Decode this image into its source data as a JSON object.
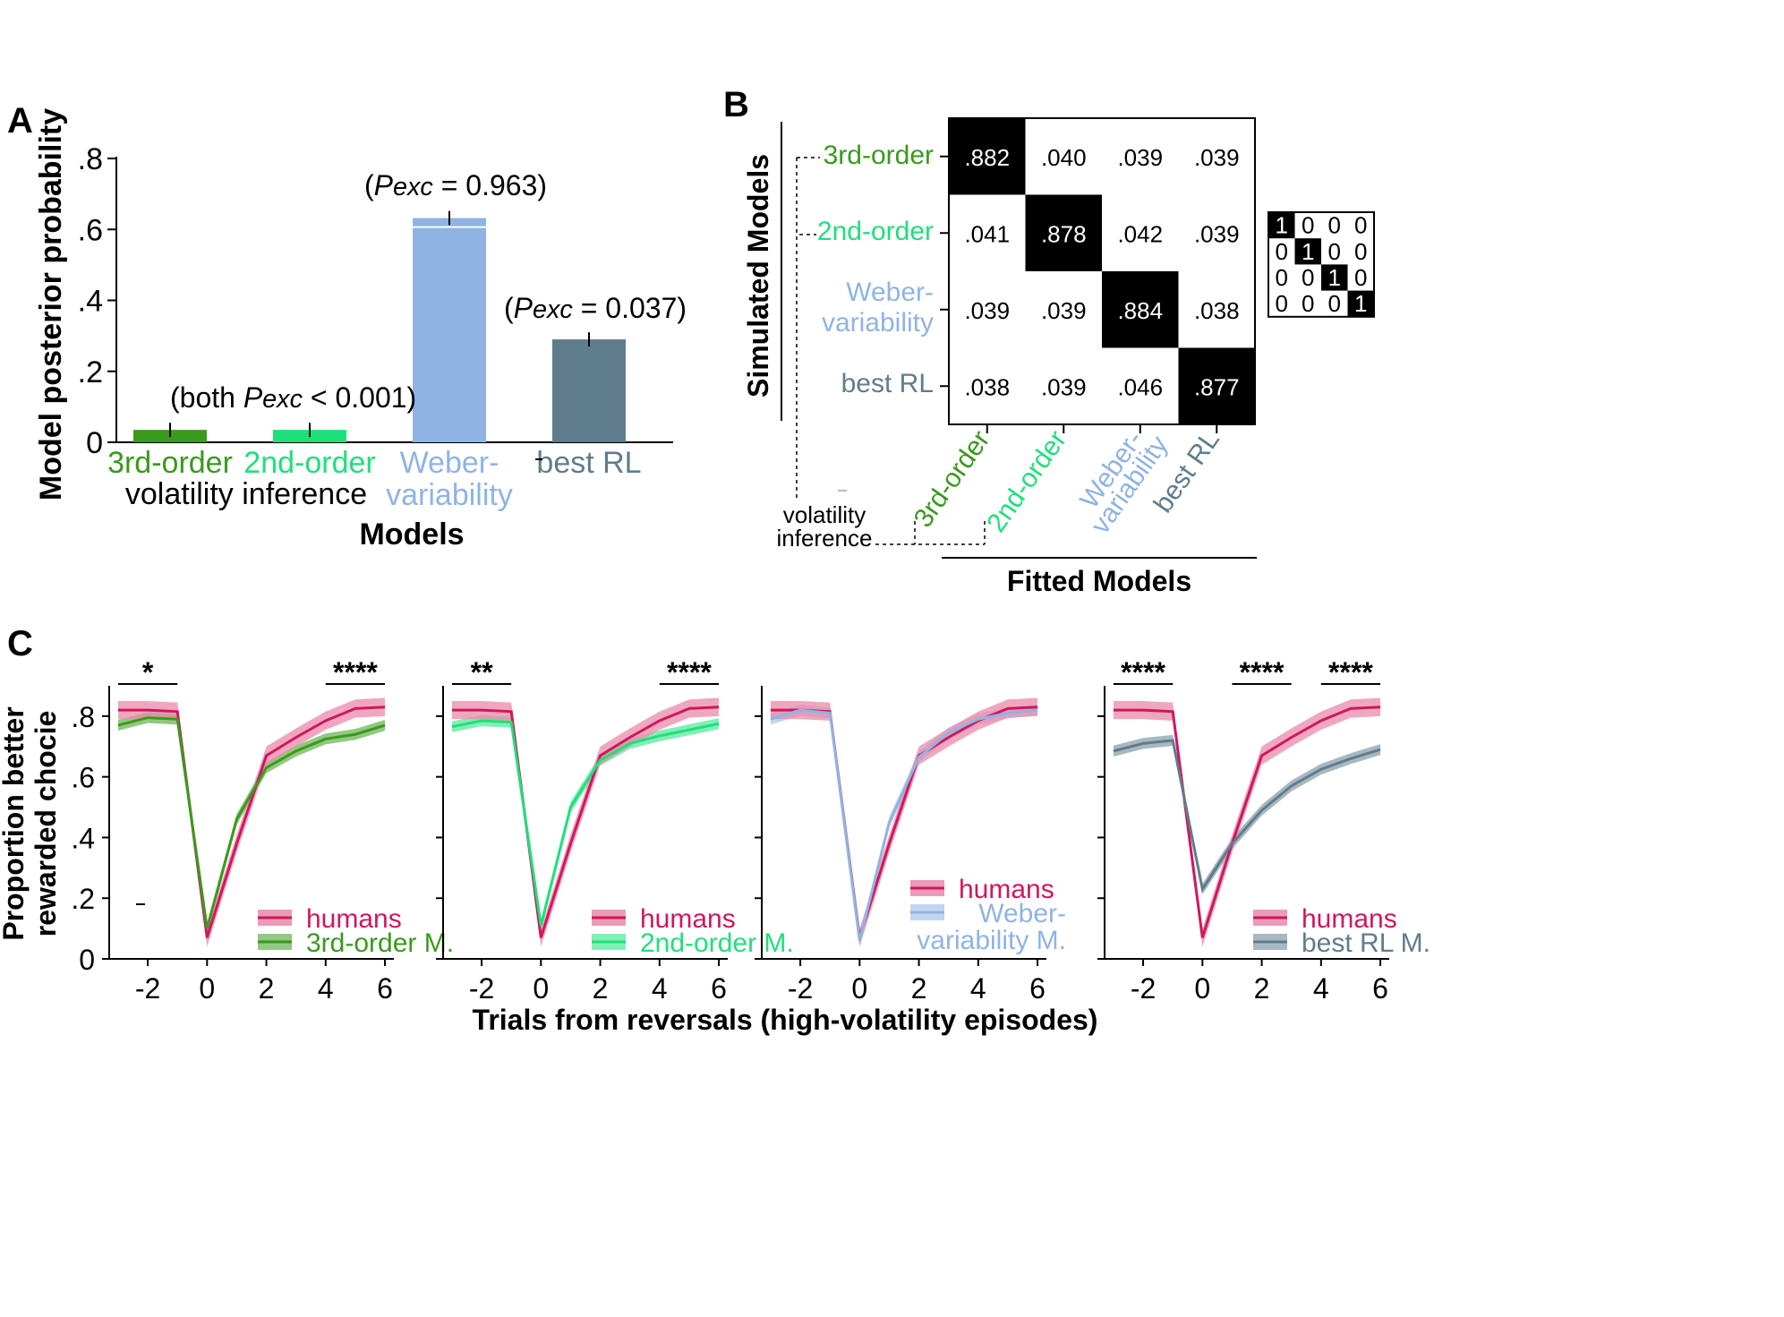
{
  "colors": {
    "third": "#3a9a1c",
    "second": "#1ee07a",
    "weber": "#8fb4e3",
    "rl": "#5f7d8c",
    "humans": "#d1165e",
    "humans_band": "#e98aa9"
  },
  "chart_data": [
    {
      "panel": "A",
      "type": "bar",
      "panel_label": "A",
      "ylabel": "Model posterior probability",
      "xlabel": "Models",
      "ylim": [
        0,
        0.8
      ],
      "yticks": [
        ".8",
        ".6",
        ".4",
        ".2",
        "0"
      ],
      "categories": [
        "3rd-order",
        "2nd-order",
        "Weber-variability",
        "best RL"
      ],
      "category_lines": [
        [
          "3rd-order"
        ],
        [
          "2nd-order"
        ],
        [
          "Weber-",
          "variability"
        ],
        [
          "best RL"
        ]
      ],
      "group_label": "volatility inference",
      "values": [
        0.035,
        0.035,
        0.632,
        0.29
      ],
      "errors": [
        0.02,
        0.02,
        0.02,
        0.02
      ],
      "annotations": {
        "both": {
          "prefix": "(both ",
          "p": "Pexc",
          "suffix": " < 0.001)"
        },
        "weber": {
          "prefix": "(",
          "p": "Pexc",
          "suffix": " = 0.963)"
        },
        "rl": {
          "prefix": "(",
          "p": "Pexc",
          "suffix": " = 0.037)"
        }
      }
    },
    {
      "panel": "B",
      "type": "heatmap",
      "panel_label": "B",
      "ylabel": "Simulated Models",
      "xlabel": "Fitted Models",
      "row_labels": [
        [
          "3rd-order"
        ],
        [
          "2nd-order"
        ],
        [
          "Weber-",
          "variability"
        ],
        [
          "best RL"
        ]
      ],
      "col_labels": [
        [
          "3rd-order"
        ],
        [
          "2nd-order"
        ],
        [
          "Weber-",
          "variability"
        ],
        [
          "best RL"
        ]
      ],
      "group_label": [
        "volatility",
        "inference"
      ],
      "matrix": [
        [
          ".882",
          ".040",
          ".039",
          ".039"
        ],
        [
          ".041",
          ".878",
          ".042",
          ".039"
        ],
        [
          ".039",
          ".039",
          ".884",
          ".038"
        ],
        [
          ".038",
          ".039",
          ".046",
          ".877"
        ]
      ],
      "identity": [
        [
          "1",
          "0",
          "0",
          "0"
        ],
        [
          "0",
          "1",
          "0",
          "0"
        ],
        [
          "0",
          "0",
          "1",
          "0"
        ],
        [
          "0",
          "0",
          "0",
          "1"
        ]
      ]
    },
    {
      "panel": "C",
      "type": "line",
      "panel_label": "C",
      "ylabel_lines": [
        "Proportion better",
        "rewarded chocie"
      ],
      "xlabel": "Trials from reversals (high-volatility episodes)",
      "ylim": [
        0,
        0.9
      ],
      "yticks": [
        ".8",
        ".6",
        ".4",
        ".2",
        "0"
      ],
      "xlim": [
        -3.3,
        6.3
      ],
      "xticks": [
        "-2",
        "0",
        "2",
        "4",
        "6"
      ],
      "x": [
        -3,
        -2,
        -1,
        0,
        1,
        2,
        3,
        4,
        5,
        6
      ],
      "humans": [
        0.82,
        0.82,
        0.815,
        0.07,
        0.38,
        0.67,
        0.73,
        0.785,
        0.825,
        0.83
      ],
      "subplots": [
        {
          "model": "third",
          "legend": [
            [
              "humans"
            ],
            [
              "3rd-order M."
            ]
          ],
          "values": [
            0.77,
            0.795,
            0.79,
            0.1,
            0.46,
            0.63,
            0.685,
            0.725,
            0.74,
            0.77
          ],
          "sig": [
            {
              "label": "*",
              "from": -3,
              "to": -1
            },
            {
              "label": "****",
              "from": 4,
              "to": 6
            }
          ]
        },
        {
          "model": "second",
          "legend": [
            [
              "humans"
            ],
            [
              "2nd-order M."
            ]
          ],
          "values": [
            0.765,
            0.785,
            0.78,
            0.11,
            0.5,
            0.655,
            0.71,
            0.735,
            0.755,
            0.775
          ],
          "sig": [
            {
              "label": "**",
              "from": -3,
              "to": -1
            },
            {
              "label": "****",
              "from": 4,
              "to": 6
            }
          ]
        },
        {
          "model": "weber",
          "legend": [
            [
              "humans"
            ],
            [
              "Weber-",
              "variability M."
            ]
          ],
          "values": [
            0.79,
            0.82,
            0.81,
            0.06,
            0.45,
            0.665,
            0.745,
            0.79,
            0.81,
            0.82
          ],
          "sig": []
        },
        {
          "model": "rl",
          "legend": [
            [
              "humans"
            ],
            [
              "best RL M."
            ]
          ],
          "values": [
            0.685,
            0.71,
            0.72,
            0.23,
            0.38,
            0.49,
            0.57,
            0.625,
            0.66,
            0.69
          ],
          "sig": [
            {
              "label": "****",
              "from": -3,
              "to": -1
            },
            {
              "label": "****",
              "from": 1,
              "to": 3
            },
            {
              "label": "****",
              "from": 4,
              "to": 6
            }
          ]
        }
      ]
    }
  ]
}
